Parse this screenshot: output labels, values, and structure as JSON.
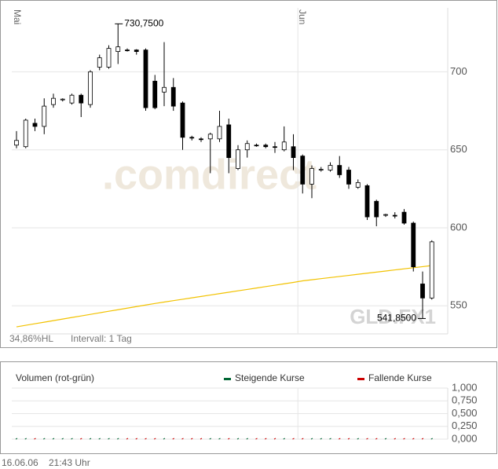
{
  "chart_data": [
    {
      "type": "candlestick",
      "categories": [
        "Mai",
        null,
        null,
        null,
        null,
        null,
        null,
        null,
        null,
        null,
        null,
        null,
        null,
        null,
        null,
        null,
        null,
        null,
        null,
        null,
        null,
        null,
        null,
        null,
        null,
        null,
        null,
        null,
        null,
        null,
        null,
        "Jun",
        null,
        null,
        null,
        null,
        null,
        null,
        null,
        null,
        null,
        null,
        null,
        null,
        null,
        null
      ],
      "open": [
        653,
        652,
        667,
        665,
        679,
        682,
        680,
        685,
        679,
        703,
        703,
        713,
        714,
        714,
        714,
        694,
        687,
        690,
        680,
        658,
        657,
        657,
        657,
        666,
        638,
        650,
        653,
        653,
        652,
        650,
        652,
        646,
        628,
        637,
        637,
        640,
        637,
        626,
        627,
        617,
        608,
        608,
        610,
        603,
        564,
        555
      ],
      "high": [
        662,
        670,
        670,
        683,
        686,
        683,
        686,
        686,
        701,
        711,
        717,
        730.75,
        715,
        714.5,
        715,
        698,
        719,
        696,
        681,
        659,
        658,
        661,
        675,
        670,
        653,
        656,
        654,
        654,
        655,
        665,
        660,
        647,
        640,
        639,
        642,
        646,
        639,
        631,
        628,
        618,
        609,
        610,
        612,
        604,
        572,
        592
      ],
      "low": [
        651,
        651,
        662,
        660,
        677,
        681,
        679,
        671,
        677,
        701,
        702,
        705,
        713,
        711,
        675,
        676,
        678,
        675,
        650,
        656,
        655,
        635,
        655,
        635,
        637,
        645,
        652,
        651,
        648,
        649,
        637,
        622,
        619,
        636,
        636,
        632,
        625,
        625,
        605,
        601,
        607,
        606,
        602,
        572,
        541.85,
        554
      ],
      "close": [
        656,
        669,
        665,
        678,
        683,
        682.5,
        685,
        680,
        700,
        709,
        715,
        716,
        713.5,
        713,
        677,
        677,
        690,
        678,
        658,
        657.5,
        656.5,
        660,
        665,
        645,
        650,
        654,
        652.5,
        652,
        651.5,
        655,
        645,
        628,
        638,
        637.5,
        640,
        634,
        628,
        629,
        607,
        607,
        608.5,
        607.5,
        603,
        575,
        555,
        591
      ],
      "up_color": "#ffffff",
      "down_color": "#000000",
      "moving_average": {
        "color": "#f2c200",
        "values": [
          536.5,
          537.5,
          538.5,
          539.5,
          540.5,
          541.5,
          542.5,
          543.5,
          544.5,
          545.5,
          546.5,
          547.5,
          548.5,
          549.5,
          550.5,
          551.5,
          552.4,
          553.3,
          554.2,
          555.1,
          556,
          556.9,
          557.8,
          558.7,
          559.6,
          560.5,
          561.4,
          562.3,
          563.2,
          564.1,
          565,
          566,
          566.7,
          567.4,
          568.1,
          568.8,
          569.5,
          570.2,
          570.9,
          571.6,
          572.3,
          573,
          573.7,
          574.4,
          575.1,
          575.8
        ]
      },
      "ylim": [
        532,
        741
      ],
      "yticks": [
        550,
        600,
        650,
        700
      ],
      "grid": true,
      "annotations": [
        {
          "value": 730.75,
          "label": "730,7500"
        },
        {
          "value": 541.85,
          "label": "541,8500"
        }
      ],
      "watermark": ".comdirect",
      "symbol": "GLD.FX1",
      "range_label": "34,86%HL",
      "interval_label": "Intervall: 1 Tag"
    },
    {
      "type": "volume",
      "title": "Volumen (rot-grün)",
      "series": [
        {
          "name": "Steigende Kurse",
          "color": "#006633",
          "values": [
            0,
            0,
            null,
            0,
            0,
            0,
            0,
            null,
            0,
            0,
            0,
            0,
            null,
            null,
            null,
            null,
            0,
            null,
            null,
            null,
            null,
            0,
            0,
            null,
            0,
            0,
            null,
            null,
            null,
            0,
            null,
            null,
            0,
            0,
            0,
            null,
            null,
            0,
            null,
            null,
            0,
            null,
            null,
            null,
            null,
            0
          ]
        },
        {
          "name": "Fallende Kurse",
          "color": "#cc0000",
          "values": [
            null,
            null,
            0,
            null,
            null,
            null,
            null,
            0,
            null,
            null,
            null,
            null,
            0,
            0,
            0,
            0,
            null,
            0,
            0,
            0,
            0,
            null,
            null,
            0,
            null,
            null,
            0,
            0,
            0,
            null,
            0,
            0,
            null,
            null,
            null,
            0,
            0,
            null,
            0,
            0,
            null,
            0,
            0,
            0,
            0,
            null
          ]
        }
      ],
      "ylim": [
        0,
        1
      ],
      "yticks": [
        {
          "value": 1,
          "label": "1,000"
        },
        {
          "value": 0.75,
          "label": "0,750"
        },
        {
          "value": 0.5,
          "label": "0,500"
        },
        {
          "value": 0.25,
          "label": "0,250"
        },
        {
          "value": 0,
          "label": "0,000"
        }
      ],
      "grid": true
    }
  ],
  "footer": {
    "date": "16.06.06",
    "time": "21:43 Uhr"
  }
}
